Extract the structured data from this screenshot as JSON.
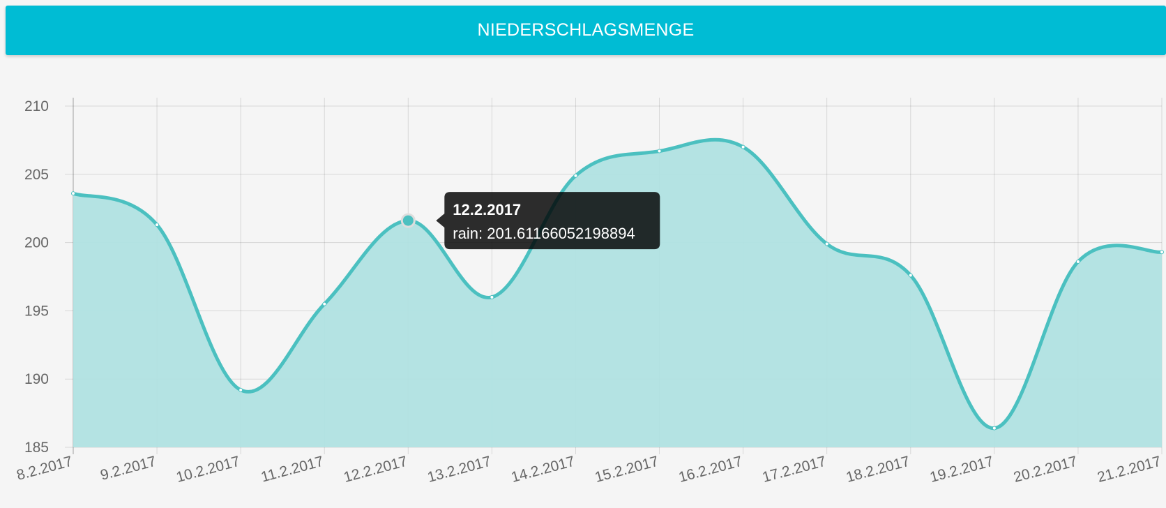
{
  "header": {
    "title": "NIEDERSCHLAGSMENGE"
  },
  "chart_data": {
    "type": "area",
    "categories": [
      "8.2.2017",
      "9.2.2017",
      "10.2.2017",
      "11.2.2017",
      "12.2.2017",
      "13.2.2017",
      "14.2.2017",
      "15.2.2017",
      "16.2.2017",
      "17.2.2017",
      "18.2.2017",
      "19.2.2017",
      "20.2.2017",
      "21.2.2017"
    ],
    "series": [
      {
        "name": "rain",
        "values": [
          203.6,
          201.3,
          189.2,
          195.5,
          201.61166052198894,
          196.0,
          204.9,
          206.7,
          207.0,
          199.9,
          197.6,
          186.4,
          198.6,
          199.3
        ]
      }
    ],
    "ylim": [
      185,
      210
    ],
    "yticks": [
      210,
      205,
      200,
      195,
      190,
      185
    ],
    "grid": true,
    "line_color": "#4bc0c0",
    "fill_color": "#b0e1e1",
    "tooltip": {
      "title": "12.2.2017",
      "label": "rain: 201.61166052198894",
      "category_index": 4
    }
  }
}
